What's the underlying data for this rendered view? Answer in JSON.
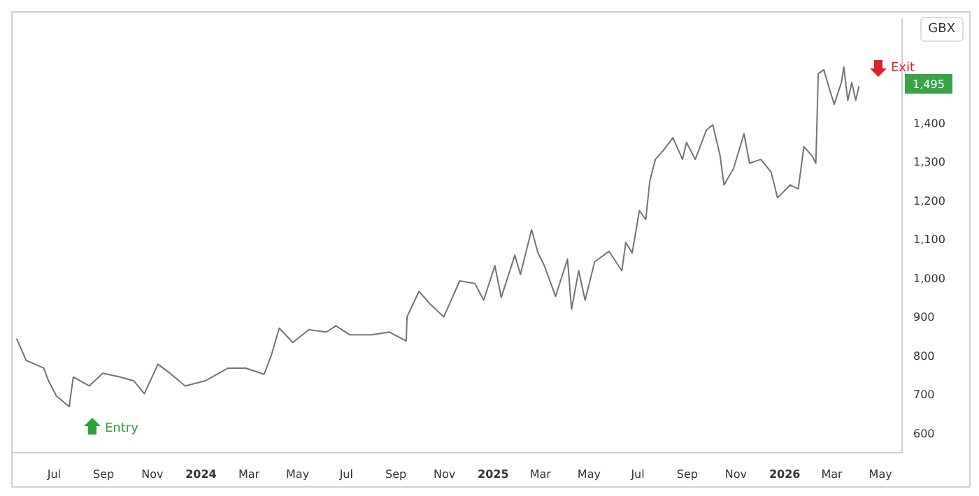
{
  "chart_data": {
    "type": "line",
    "ylabel": "GBX",
    "line_style": "solid",
    "marker": "none",
    "grid": false,
    "x": [
      "2023-05-15",
      "2023-05-27",
      "2023-06-18",
      "2023-06-24",
      "2023-07-04",
      "2023-07-20",
      "2023-07-25",
      "2023-08-14",
      "2023-08-31",
      "2023-09-22",
      "2023-10-09",
      "2023-10-22",
      "2023-11-08",
      "2023-11-23",
      "2023-12-12",
      "2024-01-06",
      "2024-02-04",
      "2024-02-26",
      "2024-03-20",
      "2024-03-29",
      "2024-04-08",
      "2024-04-25",
      "2024-05-15",
      "2024-06-06",
      "2024-06-18",
      "2024-07-05",
      "2024-08-02",
      "2024-08-24",
      "2024-09-14",
      "2024-09-15",
      "2024-09-30",
      "2024-10-14",
      "2024-10-31",
      "2024-11-20",
      "2024-12-09",
      "2024-12-20",
      "2025-01-03",
      "2025-01-11",
      "2025-01-28",
      "2025-02-04",
      "2025-02-18",
      "2025-02-26",
      "2025-03-06",
      "2025-03-20",
      "2025-04-04",
      "2025-04-09",
      "2025-04-18",
      "2025-04-26",
      "2025-05-08",
      "2025-05-26",
      "2025-06-11",
      "2025-06-16",
      "2025-06-24",
      "2025-07-03",
      "2025-07-11",
      "2025-07-16",
      "2025-07-23",
      "2025-08-02",
      "2025-08-14",
      "2025-08-26",
      "2025-08-31",
      "2025-09-11",
      "2025-09-25",
      "2025-10-03",
      "2025-10-12",
      "2025-10-17",
      "2025-10-29",
      "2025-11-11",
      "2025-11-18",
      "2025-12-02",
      "2025-12-15",
      "2025-12-23",
      "2026-01-08",
      "2026-01-18",
      "2026-01-25",
      "2026-02-04",
      "2026-02-09",
      "2026-02-10",
      "2026-02-12",
      "2026-02-19",
      "2026-02-27",
      "2026-03-04",
      "2026-03-13",
      "2026-03-16",
      "2026-03-21",
      "2026-03-26",
      "2026-03-31",
      "2026-04-04"
    ],
    "series": [
      {
        "color": "#737373",
        "values": [
          844,
          788,
          768,
          735,
          696,
          669,
          745,
          722,
          755,
          745,
          735,
          702,
          778,
          755,
          722,
          735,
          768,
          768,
          752,
          801,
          871,
          834,
          867,
          861,
          877,
          854,
          854,
          861,
          838,
          900,
          966,
          933,
          900,
          993,
          986,
          943,
          1032,
          950,
          1059,
          1009,
          1125,
          1065,
          1032,
          953,
          1049,
          920,
          1019,
          943,
          1042,
          1069,
          1019,
          1092,
          1065,
          1174,
          1151,
          1250,
          1306,
          1329,
          1362,
          1306,
          1350,
          1306,
          1382,
          1395,
          1316,
          1240,
          1283,
          1372,
          1296,
          1306,
          1273,
          1207,
          1240,
          1230,
          1339,
          1316,
          1296,
          1372,
          1527,
          1537,
          1481,
          1448,
          1504,
          1544,
          1458,
          1504,
          1458,
          1495
        ]
      }
    ],
    "xlim": [
      "2023-05-10",
      "2026-05-28"
    ],
    "xticks": [
      {
        "value": "2023-07-01",
        "label": "Jul"
      },
      {
        "value": "2023-09-01",
        "label": "Sep"
      },
      {
        "value": "2023-11-01",
        "label": "Nov"
      },
      {
        "value": "2024-01-01",
        "label": "2024"
      },
      {
        "value": "2024-03-01",
        "label": "Mar"
      },
      {
        "value": "2024-05-01",
        "label": "May"
      },
      {
        "value": "2024-07-01",
        "label": "Jul"
      },
      {
        "value": "2024-09-01",
        "label": "Sep"
      },
      {
        "value": "2024-11-01",
        "label": "Nov"
      },
      {
        "value": "2025-01-01",
        "label": "2025"
      },
      {
        "value": "2025-03-01",
        "label": "Mar"
      },
      {
        "value": "2025-05-01",
        "label": "May"
      },
      {
        "value": "2025-07-01",
        "label": "Jul"
      },
      {
        "value": "2025-09-01",
        "label": "Sep"
      },
      {
        "value": "2025-11-01",
        "label": "Nov"
      },
      {
        "value": "2026-01-01",
        "label": "2026"
      },
      {
        "value": "2026-03-01",
        "label": "Mar"
      },
      {
        "value": "2026-05-01",
        "label": "May"
      }
    ],
    "ylim": [
      550,
      1670
    ],
    "yticks": [
      {
        "value": 600,
        "label": "600"
      },
      {
        "value": 700,
        "label": "700"
      },
      {
        "value": 800,
        "label": "800"
      },
      {
        "value": 900,
        "label": "900"
      },
      {
        "value": 1000,
        "label": "1,000"
      },
      {
        "value": 1100,
        "label": "1,100"
      },
      {
        "value": 1200,
        "label": "1,200"
      },
      {
        "value": 1300,
        "label": "1,300"
      },
      {
        "value": 1400,
        "label": "1,400"
      }
    ],
    "annotations": [
      "Entry",
      "Exit",
      "1,495"
    ]
  }
}
